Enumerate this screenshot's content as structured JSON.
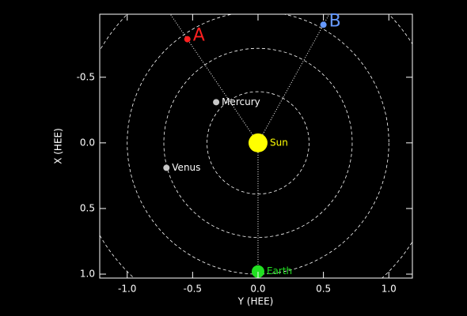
{
  "chart_data": {
    "type": "scatter",
    "xlabel": "Y (HEE)",
    "ylabel": "X (HEE)",
    "xlim": [
      -1.21,
      1.18
    ],
    "ylim": [
      -0.98,
      1.03
    ],
    "y_inverted": true,
    "xticks": [
      {
        "value": -1.0,
        "label": "-1.0"
      },
      {
        "value": -0.5,
        "label": "-0.5"
      },
      {
        "value": 0.0,
        "label": "0.0"
      },
      {
        "value": 0.5,
        "label": "0.5"
      },
      {
        "value": 1.0,
        "label": "1.0"
      }
    ],
    "yticks": [
      {
        "value": -0.5,
        "label": "-0.5"
      },
      {
        "value": 0.0,
        "label": "0.0"
      },
      {
        "value": 0.5,
        "label": "0.5"
      },
      {
        "value": 1.0,
        "label": "1.0"
      }
    ],
    "orbits": [
      0.39,
      0.72,
      1.0,
      1.4
    ],
    "series": [
      {
        "name": "Sun",
        "color": "#ffff00",
        "x": [
          0.0
        ],
        "values": [
          0.0
        ],
        "size": 12,
        "label_size": 12,
        "line": false
      },
      {
        "name": "Mercury",
        "color": "#c8c8c8",
        "x": [
          -0.32
        ],
        "values": [
          -0.31
        ],
        "size": 4,
        "label_size": 12,
        "line": false
      },
      {
        "name": "Venus",
        "color": "#c8c8c8",
        "x": [
          -0.7
        ],
        "values": [
          0.19
        ],
        "size": 4,
        "label_size": 12,
        "line": false
      },
      {
        "name": "Earth",
        "color": "#22e022",
        "x": [
          0.0
        ],
        "values": [
          0.98
        ],
        "size": 8,
        "label_size": 12,
        "line": true
      },
      {
        "name": "A",
        "color": "#ff2020",
        "x": [
          -0.54
        ],
        "values": [
          -0.79
        ],
        "size": 4,
        "label_size": 22,
        "line": true
      },
      {
        "name": "B",
        "color": "#6699ff",
        "x": [
          0.5
        ],
        "values": [
          -0.9
        ],
        "size": 4,
        "label_size": 22,
        "line": true
      }
    ]
  }
}
